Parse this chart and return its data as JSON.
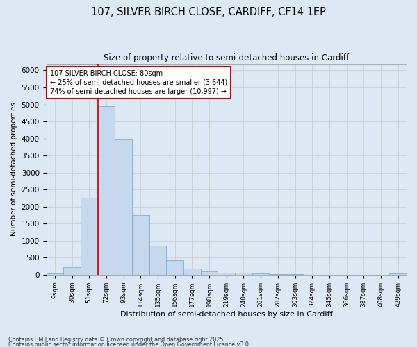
{
  "title_line1": "107, SILVER BIRCH CLOSE, CARDIFF, CF14 1EP",
  "title_line2": "Size of property relative to semi-detached houses in Cardiff",
  "xlabel": "Distribution of semi-detached houses by size in Cardiff",
  "ylabel": "Number of semi-detached properties",
  "categories": [
    "9sqm",
    "30sqm",
    "51sqm",
    "72sqm",
    "93sqm",
    "114sqm",
    "135sqm",
    "156sqm",
    "177sqm",
    "198sqm",
    "219sqm",
    "240sqm",
    "261sqm",
    "282sqm",
    "303sqm",
    "324sqm",
    "345sqm",
    "366sqm",
    "387sqm",
    "408sqm",
    "429sqm"
  ],
  "values": [
    30,
    230,
    2250,
    4950,
    3970,
    1750,
    850,
    415,
    185,
    95,
    60,
    55,
    45,
    20,
    10,
    5,
    5,
    5,
    5,
    5,
    30
  ],
  "bar_color": "#c5d8ee",
  "bar_edgecolor": "#7aaed4",
  "vline_color": "#cc0000",
  "vline_x_index": 3,
  "annotation_text": "107 SILVER BIRCH CLOSE: 80sqm\n← 25% of semi-detached houses are smaller (3,644)\n74% of semi-detached houses are larger (10,997) →",
  "annotation_box_color": "#ffffff",
  "annotation_box_edgecolor": "#cc0000",
  "ylim": [
    0,
    6200
  ],
  "yticks": [
    0,
    500,
    1000,
    1500,
    2000,
    2500,
    3000,
    3500,
    4000,
    4500,
    5000,
    5500,
    6000
  ],
  "grid_color": "#cccccc",
  "bg_color": "#dde8f5",
  "footnote_line1": "Contains HM Land Registry data © Crown copyright and database right 2025.",
  "footnote_line2": "Contains public sector information licensed under the Open Government Licence v3.0."
}
